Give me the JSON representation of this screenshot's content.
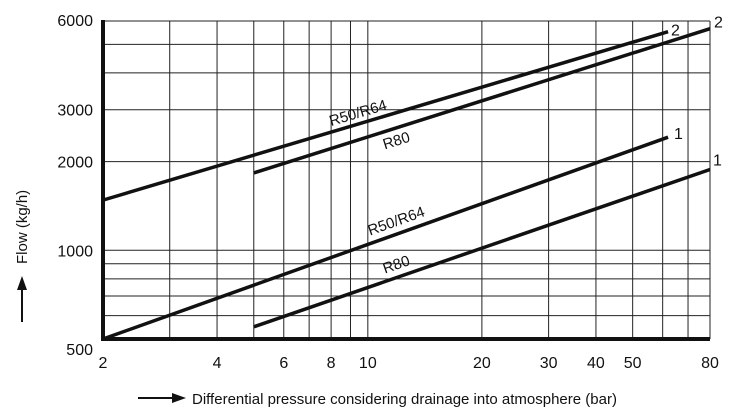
{
  "chart_data": {
    "type": "line",
    "title": "",
    "xlabel": "Differential pressure considering drainage into atmosphere (bar)",
    "ylabel": "Flow (kg/h)",
    "x_scale": "log",
    "y_scale": "log",
    "xlim": [
      2,
      80
    ],
    "ylim": [
      500,
      6000
    ],
    "grid": true,
    "x_ticks": [
      {
        "value": 2,
        "label": "2"
      },
      {
        "value": 4,
        "label": "4"
      },
      {
        "value": 6,
        "label": "6"
      },
      {
        "value": 8,
        "label": "8"
      },
      {
        "value": 10,
        "label": "10"
      },
      {
        "value": 20,
        "label": "20"
      },
      {
        "value": 30,
        "label": "30"
      },
      {
        "value": 40,
        "label": "40"
      },
      {
        "value": 50,
        "label": "50"
      },
      {
        "value": 80,
        "label": "80"
      }
    ],
    "y_ticks": [
      {
        "value": 500,
        "label": "500"
      },
      {
        "value": 1000,
        "label": "1000"
      },
      {
        "value": 2000,
        "label": "2000"
      },
      {
        "value": 3000,
        "label": "3000"
      },
      {
        "value": 6000,
        "label": "6000"
      }
    ],
    "x_gridlines": [
      2,
      3,
      4,
      5,
      6,
      7,
      8,
      9,
      10,
      20,
      30,
      40,
      50,
      60,
      70,
      80
    ],
    "y_gridlines": [
      500,
      600,
      700,
      800,
      900,
      1000,
      2000,
      3000,
      4000,
      5000,
      6000
    ],
    "series": [
      {
        "name": "R50/R64",
        "end_label": "2",
        "x": [
          2,
          62
        ],
        "y": [
          1480,
          5520
        ]
      },
      {
        "name": "R80",
        "end_label": "2",
        "x": [
          5,
          80
        ],
        "y": [
          1830,
          5650
        ]
      },
      {
        "name": "R50/R64",
        "end_label": "1",
        "x": [
          2,
          62
        ],
        "y": [
          500,
          2420
        ]
      },
      {
        "name": "R80",
        "end_label": "1",
        "x": [
          5,
          80
        ],
        "y": [
          550,
          1880
        ]
      }
    ]
  }
}
